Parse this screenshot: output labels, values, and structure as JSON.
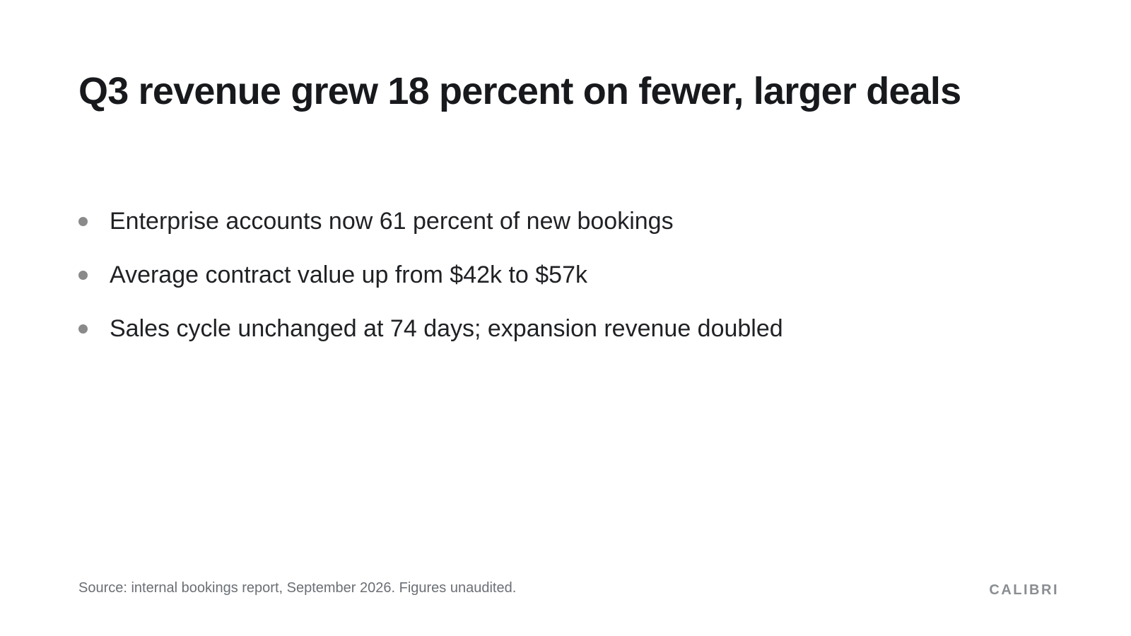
{
  "slide": {
    "title": "Q3 revenue grew 18 percent on fewer, larger deals",
    "bullets": [
      "Enterprise accounts now 61 percent of new bookings",
      "Average contract value up from $42k to $57k",
      "Sales cycle unchanged at 74 days; expansion revenue doubled"
    ],
    "source": "Source: internal bookings report, September 2026. Figures unaudited.",
    "brand": "CALIBRI"
  },
  "colors": {
    "background": "#ffffff",
    "title": "#17191c",
    "body_text": "#1f2124",
    "bullet_dot": "#8a8a8a",
    "footer_text": "#6b6f74",
    "brand_text": "#8a8d91"
  },
  "icons": {
    "bullet": "bullet-dot-icon"
  }
}
